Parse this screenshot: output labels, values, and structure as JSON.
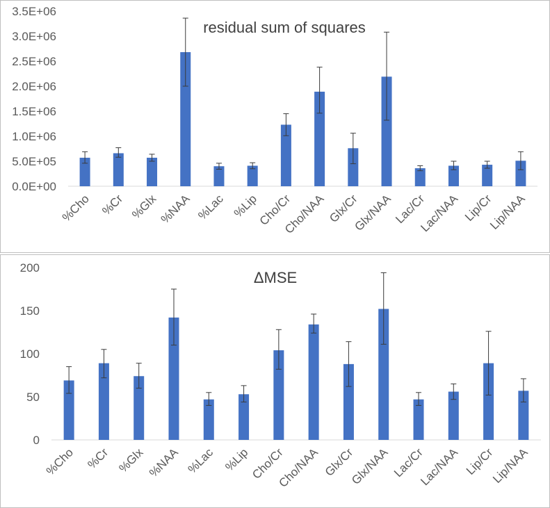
{
  "chart_data": [
    {
      "type": "bar",
      "title": "residual sum of squares",
      "categories": [
        "%Cho",
        "%Cr",
        "%Glx",
        "%NAA",
        "%Lac",
        "%Lip",
        "Cho/Cr",
        "Cho/NAA",
        "Glx/Cr",
        "Glx/NAA",
        "Lac/Cr",
        "Lac/NAA",
        "Lip/Cr",
        "Lip/NAA"
      ],
      "values": [
        570000,
        660000,
        570000,
        2680000,
        400000,
        410000,
        1230000,
        1890000,
        760000,
        2190000,
        360000,
        410000,
        430000,
        510000
      ],
      "err_low": [
        460000,
        580000,
        500000,
        2000000,
        340000,
        350000,
        1010000,
        1460000,
        450000,
        1320000,
        310000,
        330000,
        360000,
        330000
      ],
      "err_high": [
        690000,
        770000,
        640000,
        3360000,
        460000,
        470000,
        1450000,
        2380000,
        1060000,
        3080000,
        410000,
        500000,
        500000,
        690000
      ],
      "yticks": [
        "0.0E+00",
        "5.0E+05",
        "1.0E+06",
        "1.5E+06",
        "2.0E+06",
        "2.5E+06",
        "3.0E+06",
        "3.5E+06"
      ],
      "ylim": [
        0,
        3500000
      ],
      "xlabel": "",
      "ylabel": "",
      "grid": false,
      "bar_color": "#4472C4"
    },
    {
      "type": "bar",
      "title": "ΔMSE",
      "categories": [
        "%Cho",
        "%Cr",
        "%Glx",
        "%NAA",
        "%Lac",
        "%Lip",
        "Cho/Cr",
        "Cho/NAA",
        "Glx/Cr",
        "Glx/NAA",
        "Lac/Cr",
        "Lac/NAA",
        "Lip/Cr",
        "Lip/NAA"
      ],
      "values": [
        69,
        89,
        74,
        142,
        47,
        53,
        104,
        134,
        88,
        152,
        47,
        56,
        89,
        57
      ],
      "err_low": [
        54,
        72,
        60,
        110,
        40,
        44,
        82,
        124,
        62,
        111,
        40,
        47,
        52,
        44
      ],
      "err_high": [
        85,
        105,
        89,
        175,
        55,
        63,
        128,
        146,
        114,
        194,
        55,
        65,
        126,
        71
      ],
      "yticks": [
        "0",
        "50",
        "100",
        "150",
        "200"
      ],
      "ylim": [
        0,
        200
      ],
      "xlabel": "",
      "ylabel": "",
      "grid": false,
      "bar_color": "#4472C4"
    }
  ]
}
